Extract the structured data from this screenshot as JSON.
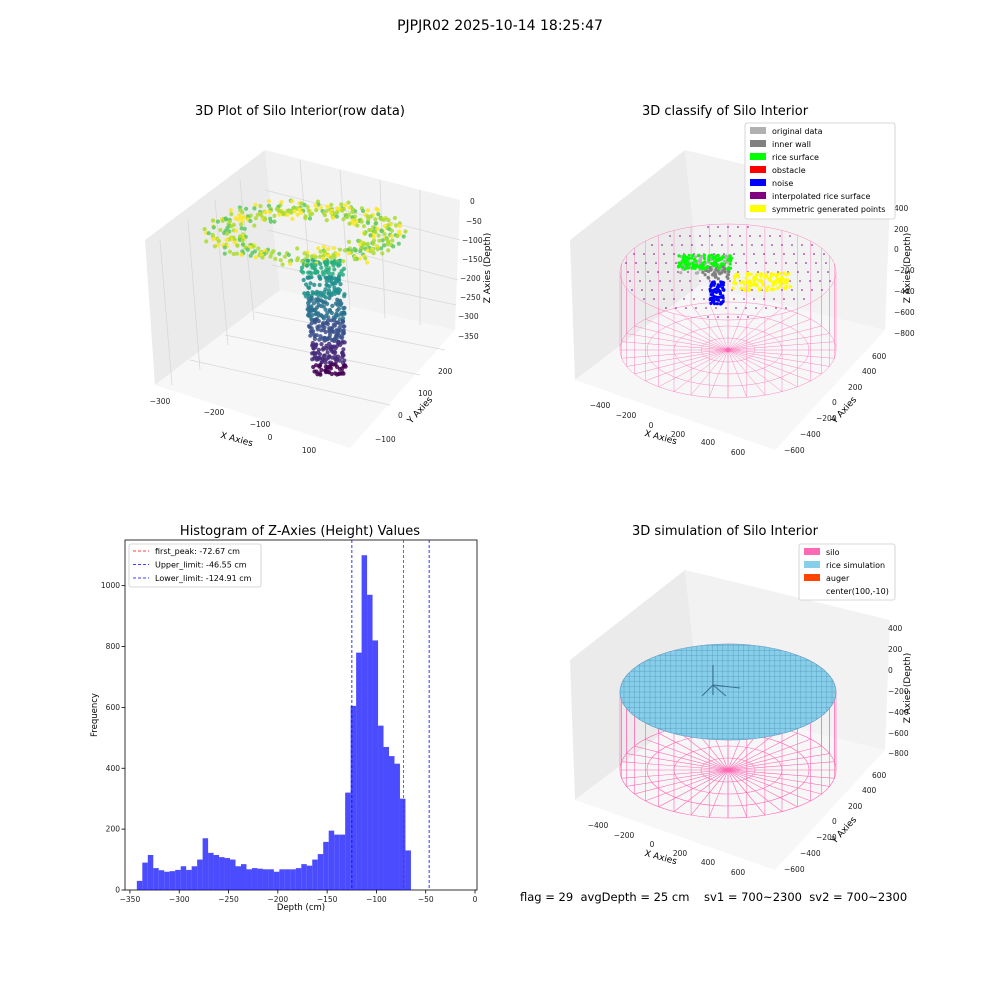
{
  "suptitle": "PJPJR02 2025-10-14 18:25:47",
  "footer": "flag = 29  avgDepth = 25 cm    sv1 = 700~2300  sv2 = 700~2300",
  "colors": {
    "histogram_bars": "#0000ff",
    "first_peak_line": "#ff0000",
    "limit_lines": "#0000ff",
    "pane": "#f2f2f2",
    "silo_wire": "#ff69b4",
    "rice_simulation": "#87ceeb",
    "auger": "#ff4500"
  },
  "chart_data": [
    {
      "type": "scatter3d",
      "title": "3D Plot of Silo Interior(row data)",
      "xlabel": "X Axies",
      "ylabel": "Y Axies",
      "zlabel": "Z Axies (Depth)",
      "x_ticks": [
        "−300",
        "−200",
        "−100",
        "0",
        "100"
      ],
      "y_ticks": [
        "−100",
        "0",
        "100",
        "200"
      ],
      "z_ticks": [
        "0",
        "−50",
        "−100",
        "−150",
        "−200",
        "−250",
        "−300",
        "−350"
      ],
      "xlim": [
        -330,
        160
      ],
      "ylim": [
        -150,
        260
      ],
      "zlim": [
        -360,
        0
      ],
      "colormap": "viridis"
    },
    {
      "type": "scatter3d",
      "title": "3D classify of Silo Interior",
      "xlabel": "X Axies",
      "ylabel": "Y Axies",
      "zlabel": "Z Axies (Depth)",
      "x_ticks": [
        "−400",
        "−200",
        "0",
        "200",
        "400",
        "600"
      ],
      "y_ticks": [
        "−600",
        "−400",
        "−200",
        "0",
        "200",
        "400",
        "600"
      ],
      "z_ticks": [
        "400",
        "200",
        "0",
        "−200",
        "−400",
        "−600",
        "−800"
      ],
      "legend_position": "upper right",
      "legend": [
        {
          "label": "original data",
          "color": "#b0b0b0"
        },
        {
          "label": "inner wall",
          "color": "#808080"
        },
        {
          "label": "rice surface",
          "color": "#00ff00"
        },
        {
          "label": "obstacle",
          "color": "#ff0000"
        },
        {
          "label": "noise",
          "color": "#0000ff"
        },
        {
          "label": "interpolated rice surface",
          "color": "#800080"
        },
        {
          "label": "symmetric generated points",
          "color": "#ffff00"
        }
      ]
    },
    {
      "type": "histogram",
      "title": "Histogram of Z-Axies (Height) Values",
      "xlabel": "Depth (cm)",
      "ylabel": "Frequency",
      "xlim": [
        -355,
        2
      ],
      "ylim": [
        0,
        1150
      ],
      "x_ticks": [
        -350,
        -300,
        -250,
        -200,
        -150,
        -100,
        -50,
        0
      ],
      "y_ticks": [
        0,
        200,
        400,
        600,
        800,
        1000
      ],
      "bin_start": -343,
      "bin_width": 5.56,
      "counts": [
        30,
        90,
        115,
        72,
        65,
        60,
        62,
        66,
        78,
        66,
        78,
        100,
        170,
        122,
        115,
        108,
        105,
        100,
        78,
        85,
        68,
        72,
        70,
        68,
        68,
        60,
        68,
        68,
        68,
        72,
        85,
        80,
        100,
        118,
        158,
        195,
        182,
        182,
        320,
        605,
        780,
        1100,
        970,
        820,
        540,
        470,
        440,
        415,
        300,
        130
      ],
      "vlines": [
        {
          "label": "first_peak: -72.67 cm",
          "value": -72.67,
          "color": "#ff0000"
        },
        {
          "label": "Upper_limit: -46.55 cm",
          "value": -46.55,
          "color": "#0000ff"
        },
        {
          "label": "Lower_limit: -124.91 cm",
          "value": -124.91,
          "color": "#0000ff"
        }
      ],
      "legend_position": "upper left"
    },
    {
      "type": "surface3d",
      "title": "3D simulation of Silo Interior",
      "xlabel": "X Axies",
      "ylabel": "Y Axies",
      "zlabel": "Z Axies (Depth)",
      "x_ticks": [
        "−400",
        "−200",
        "0",
        "200",
        "400",
        "600"
      ],
      "y_ticks": [
        "−600",
        "−400",
        "−200",
        "0",
        "200",
        "400",
        "600"
      ],
      "z_ticks": [
        "400",
        "200",
        "0",
        "−200",
        "−400",
        "−600",
        "−800"
      ],
      "legend_position": "upper right",
      "legend": [
        {
          "label": "silo",
          "color": "#ff69b4"
        },
        {
          "label": "rice simulation",
          "color": "#87ceeb"
        },
        {
          "label": "auger",
          "color": "#ff4500"
        },
        {
          "label": "center(100,-10)",
          "color": ""
        }
      ]
    }
  ]
}
